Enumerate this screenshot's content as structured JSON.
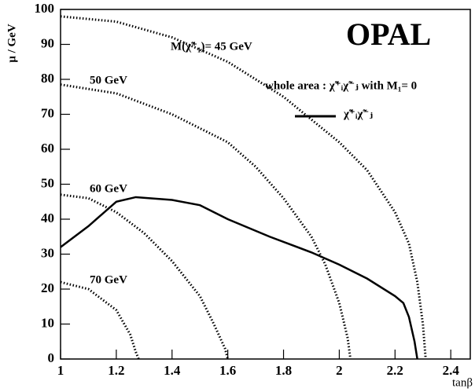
{
  "chart_data": {
    "type": "line",
    "title": "OPAL",
    "x_label": "tanβ",
    "y_label": "μ / GeV",
    "annotation": "whole area :  χ̃⁺ᵢχ̃⁻ⱼ with M₁= 0",
    "xlim": [
      1,
      2.47
    ],
    "ylim": [
      0,
      100
    ],
    "xticks": [
      1,
      1.2,
      1.4,
      1.6,
      1.8,
      2,
      2.2,
      2.4
    ],
    "yticks": [
      0,
      10,
      20,
      30,
      40,
      50,
      60,
      70,
      80,
      90,
      100
    ],
    "series": [
      {
        "name": "M(χ̃⁺₁)= 45 GeV",
        "color": "#000",
        "style": "dotted",
        "x": [
          1,
          1.2,
          1.4,
          1.6,
          1.8,
          2,
          2.1,
          2.2,
          2.25,
          2.28,
          2.3,
          2.31
        ],
        "values": [
          98,
          96.5,
          92,
          85,
          75,
          62,
          54,
          42,
          33,
          22,
          10,
          0
        ]
      },
      {
        "name": "50 GeV",
        "color": "#000",
        "style": "dotted",
        "x": [
          1,
          1.2,
          1.4,
          1.6,
          1.7,
          1.8,
          1.9,
          1.95,
          2,
          2.03,
          2.04
        ],
        "values": [
          78.5,
          76,
          70,
          62,
          55,
          46,
          35,
          27,
          16,
          6,
          0
        ]
      },
      {
        "name": "60 GeV",
        "color": "#000",
        "style": "dotted",
        "x": [
          1,
          1.1,
          1.2,
          1.3,
          1.4,
          1.5,
          1.55,
          1.59,
          1.6
        ],
        "values": [
          47,
          46,
          42,
          36,
          28,
          18,
          10,
          3,
          0
        ]
      },
      {
        "name": "70 GeV",
        "color": "#000",
        "style": "dotted",
        "x": [
          1,
          1.1,
          1.2,
          1.25,
          1.27,
          1.28
        ],
        "values": [
          22,
          20,
          14,
          7,
          2,
          0
        ]
      },
      {
        "name": "χ̃⁺ᵢχ̃⁻ⱼ",
        "color": "#000",
        "style": "solid",
        "x": [
          1,
          1.1,
          1.2,
          1.27,
          1.4,
          1.5,
          1.6,
          1.75,
          1.9,
          2,
          2.1,
          2.2,
          2.23,
          2.25,
          2.27,
          2.28
        ],
        "values": [
          32,
          38,
          45,
          46.3,
          45.5,
          44,
          40,
          35,
          30.5,
          27,
          23,
          18,
          16,
          12,
          5,
          0
        ]
      }
    ]
  }
}
